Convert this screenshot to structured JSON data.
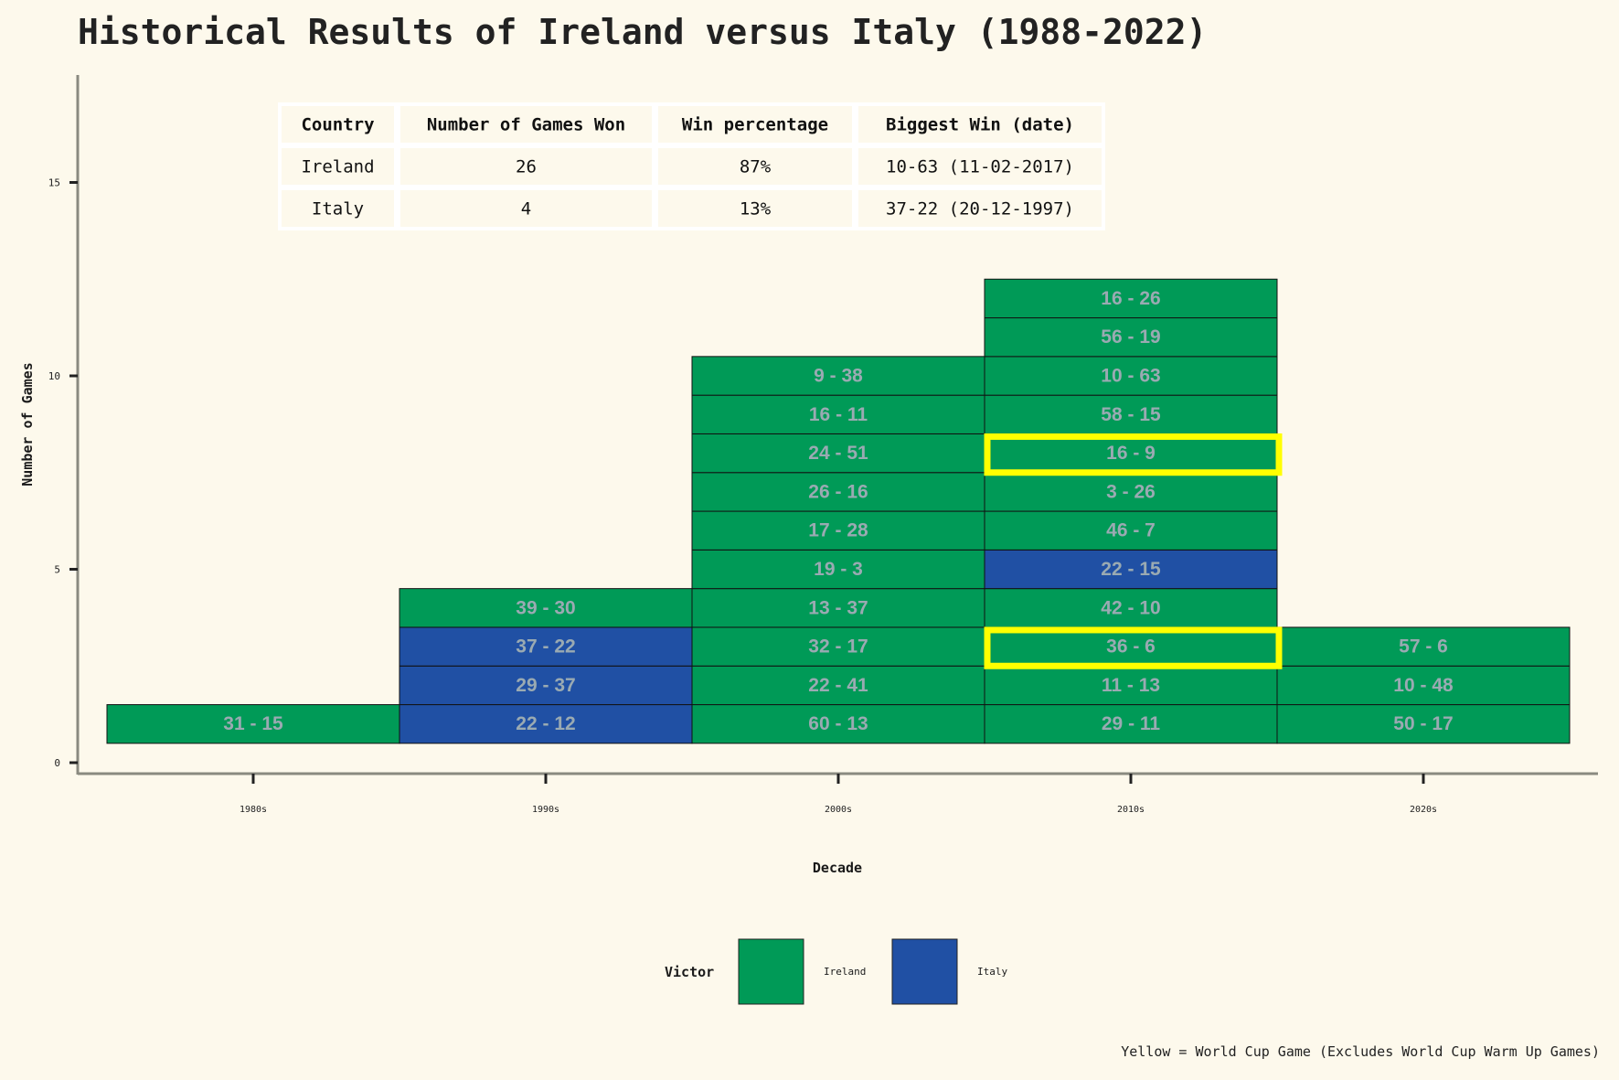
{
  "title": "Historical Results of Ireland versus Italy (1988-2022)",
  "caption": "Yellow = World Cup Game (Excludes World Cup Warm Up Games)",
  "colors": {
    "background": "#fdf9ec",
    "ireland": "#009a57",
    "italy": "#2050a4",
    "world_cup_highlight": "#ffff00",
    "axis": "#8a8a80"
  },
  "summary_table": {
    "headers": [
      "Country",
      "Number of Games Won",
      "Win percentage",
      "Biggest Win (date)"
    ],
    "rows": [
      [
        "Ireland",
        "26",
        "87%",
        "10-63 (11-02-2017)"
      ],
      [
        "Italy",
        "4",
        "13%",
        "37-22 (20-12-1997)"
      ]
    ]
  },
  "legend": {
    "title": "Victor",
    "items": [
      {
        "label": "Ireland",
        "color": "#009a57"
      },
      {
        "label": "Italy",
        "color": "#2050a4"
      }
    ]
  },
  "chart_data": {
    "type": "bar",
    "title": "Historical Results of Ireland versus Italy (1988-2022)",
    "xlabel": "Decade",
    "ylabel": "Number of Games",
    "categories": [
      "1980s",
      "1990s",
      "2000s",
      "2010s",
      "2020s"
    ],
    "ylim": [
      0,
      17.5
    ],
    "yticks": [
      0,
      5,
      10,
      15
    ],
    "grid": false,
    "legend_position": "bottom",
    "series": [
      {
        "name": "Ireland",
        "values": [
          1,
          1,
          10,
          11,
          3
        ]
      },
      {
        "name": "Italy",
        "values": [
          0,
          3,
          0,
          1,
          0
        ]
      }
    ],
    "games": {
      "1980s": [
        {
          "score": "31 - 15",
          "victor": "Ireland",
          "world_cup": false
        }
      ],
      "1990s": [
        {
          "score": "22 - 12",
          "victor": "Italy",
          "world_cup": false
        },
        {
          "score": "29 - 37",
          "victor": "Italy",
          "world_cup": false
        },
        {
          "score": "37 - 22",
          "victor": "Italy",
          "world_cup": false
        },
        {
          "score": "39 - 30",
          "victor": "Ireland",
          "world_cup": false
        }
      ],
      "2000s": [
        {
          "score": "60 - 13",
          "victor": "Ireland",
          "world_cup": false
        },
        {
          "score": "22 - 41",
          "victor": "Ireland",
          "world_cup": false
        },
        {
          "score": "32 - 17",
          "victor": "Ireland",
          "world_cup": false
        },
        {
          "score": "13 - 37",
          "victor": "Ireland",
          "world_cup": false
        },
        {
          "score": "19 - 3",
          "victor": "Ireland",
          "world_cup": false
        },
        {
          "score": "17 - 28",
          "victor": "Ireland",
          "world_cup": false
        },
        {
          "score": "26 - 16",
          "victor": "Ireland",
          "world_cup": false
        },
        {
          "score": "24 - 51",
          "victor": "Ireland",
          "world_cup": false
        },
        {
          "score": "16 - 11",
          "victor": "Ireland",
          "world_cup": false
        },
        {
          "score": "9 - 38",
          "victor": "Ireland",
          "world_cup": false
        }
      ],
      "2010s": [
        {
          "score": "29 - 11",
          "victor": "Ireland",
          "world_cup": false
        },
        {
          "score": "11 - 13",
          "victor": "Ireland",
          "world_cup": false
        },
        {
          "score": "36 - 6",
          "victor": "Ireland",
          "world_cup": true
        },
        {
          "score": "42 - 10",
          "victor": "Ireland",
          "world_cup": false
        },
        {
          "score": "22 - 15",
          "victor": "Italy",
          "world_cup": false
        },
        {
          "score": "46 - 7",
          "victor": "Ireland",
          "world_cup": false
        },
        {
          "score": "3 - 26",
          "victor": "Ireland",
          "world_cup": false
        },
        {
          "score": "16 - 9",
          "victor": "Ireland",
          "world_cup": true
        },
        {
          "score": "58 - 15",
          "victor": "Ireland",
          "world_cup": false
        },
        {
          "score": "10 - 63",
          "victor": "Ireland",
          "world_cup": false
        },
        {
          "score": "56 - 19",
          "victor": "Ireland",
          "world_cup": false
        },
        {
          "score": "16 - 26",
          "victor": "Ireland",
          "world_cup": false
        }
      ],
      "2020s": [
        {
          "score": "50 - 17",
          "victor": "Ireland",
          "world_cup": false
        },
        {
          "score": "10 - 48",
          "victor": "Ireland",
          "world_cup": false
        },
        {
          "score": "57 - 6",
          "victor": "Ireland",
          "world_cup": false
        }
      ]
    }
  }
}
